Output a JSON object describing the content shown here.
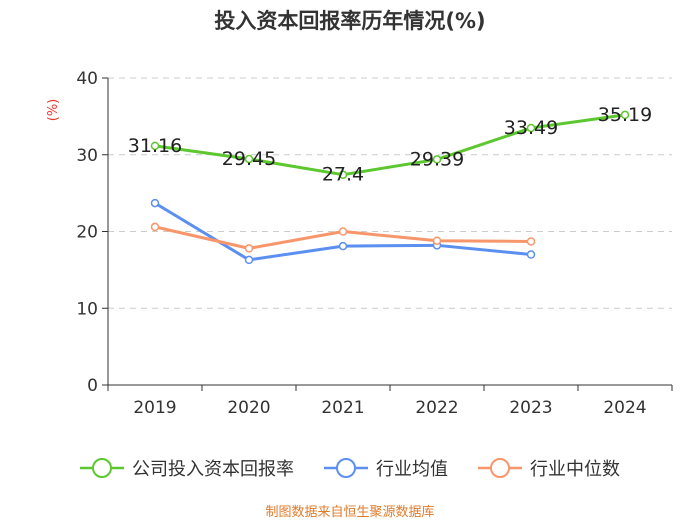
{
  "chart_data": {
    "type": "line",
    "title": "投入资本回报率历年情况(%)",
    "ylabel": "(%)",
    "xlabel": "",
    "categories": [
      "2019",
      "2020",
      "2021",
      "2022",
      "2023",
      "2024"
    ],
    "ylim": [
      0,
      40
    ],
    "yticks": [
      0,
      10,
      20,
      30,
      40
    ],
    "grid": true,
    "legend_position": "bottom",
    "series": [
      {
        "name": "公司投入资本回报率",
        "color": "#5cc72e",
        "values": [
          31.16,
          29.45,
          27.4,
          29.39,
          33.49,
          35.19
        ],
        "labels": [
          "31.16",
          "29.45",
          "27.4",
          "29.39",
          "33.49",
          "35.19"
        ],
        "show_labels": true
      },
      {
        "name": "行业均值",
        "color": "#5b8ff0",
        "values": [
          23.7,
          16.3,
          18.1,
          18.2,
          17.0,
          null
        ],
        "show_labels": false
      },
      {
        "name": "行业中位数",
        "color": "#f8966b",
        "values": [
          20.6,
          17.8,
          20.0,
          18.8,
          18.7,
          null
        ],
        "show_labels": false
      }
    ]
  },
  "source": "制图数据来自恒生聚源数据库"
}
